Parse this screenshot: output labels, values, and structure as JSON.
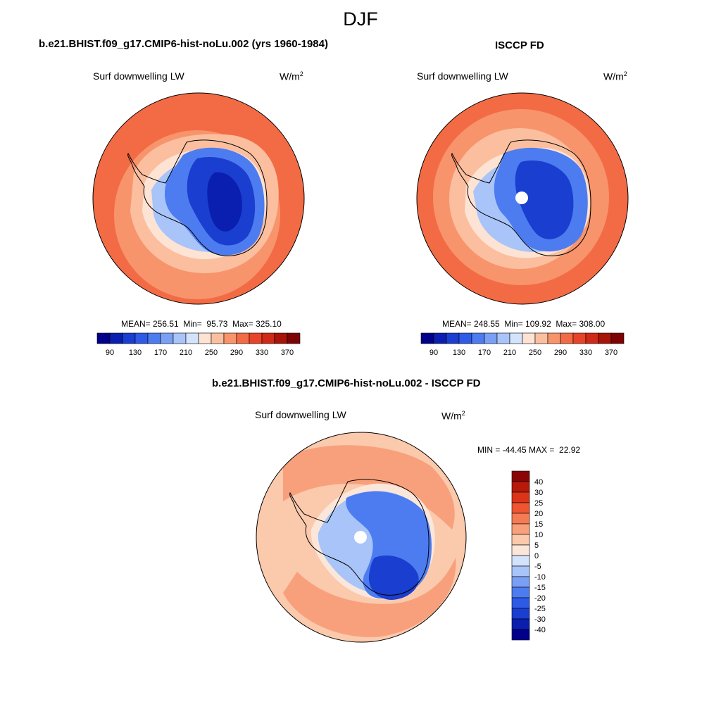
{
  "figure": {
    "season": "DJF",
    "panels": [
      {
        "title": "b.e21.BHIST.f09_g17.CMIP6-hist-noLu.002 (yrs 1960-1984)",
        "variable": "Surf downwelling LW",
        "units": "W/m",
        "units_sup": "2",
        "stats": "MEAN= 256.51  Min=  95.73  Max= 325.10"
      },
      {
        "title": "ISCCP FD",
        "variable": "Surf downwelling LW",
        "units": "W/m",
        "units_sup": "2",
        "stats": "MEAN= 248.55  Min= 109.92  Max= 308.00"
      },
      {
        "title": "b.e21.BHIST.f09_g17.CMIP6-hist-noLu.002 - ISCCP FD",
        "variable": "Surf downwelling LW",
        "units": "W/m",
        "units_sup": "2",
        "stats": "MIN = -44.45 MAX =  22.92"
      }
    ]
  },
  "colorbars": {
    "absolute": {
      "colors": [
        "#00008a",
        "#0a1fb0",
        "#1a3ed0",
        "#2e5ae8",
        "#4d7cf0",
        "#7aa0f5",
        "#a8c4f8",
        "#d3e3fc",
        "#fde3d3",
        "#fbbf9f",
        "#f8946c",
        "#f36b45",
        "#e8442a",
        "#cf2a18",
        "#a81407",
        "#7d0303"
      ],
      "labels": [
        "90",
        "130",
        "170",
        "210",
        "250",
        "290",
        "330",
        "370"
      ]
    },
    "difference": {
      "colors": [
        "#00008a",
        "#0a1fb0",
        "#1a3ed0",
        "#2e5ae8",
        "#4d7cf0",
        "#7aa0f5",
        "#a8c4f8",
        "#d3e3fc",
        "#fbe6da",
        "#fbc9ac",
        "#f8a07c",
        "#f57b55",
        "#ef5530",
        "#db3418",
        "#b71a0a",
        "#8a0505"
      ],
      "labels": [
        "-40",
        "-30",
        "-25",
        "-20",
        "-15",
        "-10",
        "-5",
        "0",
        "5",
        "10",
        "15",
        "20",
        "25",
        "30",
        "40"
      ]
    }
  }
}
